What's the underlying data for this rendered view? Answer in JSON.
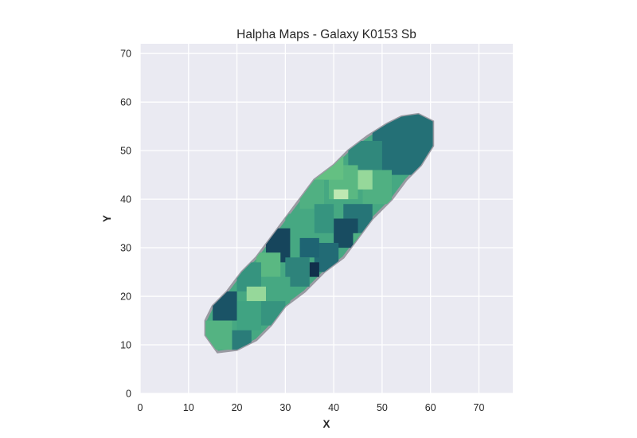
{
  "chart_data": {
    "type": "heatmap",
    "title": "Halpha Maps - Galaxy K0153 Sb",
    "xlabel": "X",
    "ylabel": "Y",
    "xlim": [
      0,
      77
    ],
    "ylim": [
      0,
      72
    ],
    "xticks": [
      0,
      10,
      20,
      30,
      40,
      50,
      60,
      70
    ],
    "yticks": [
      0,
      10,
      20,
      30,
      40,
      50,
      60,
      70
    ],
    "xtick_labels": [
      "0",
      "10",
      "20",
      "30",
      "40",
      "50",
      "60",
      "70"
    ],
    "ytick_labels": [
      "0",
      "10",
      "20",
      "30",
      "40",
      "50",
      "60",
      "70"
    ],
    "grid": true,
    "background_color": "#eaeaf2",
    "grid_color": "#ffffff",
    "colormap": "crest (teal-green)",
    "galaxy_outline": [
      [
        13.5,
        12
      ],
      [
        13.5,
        15
      ],
      [
        15,
        18
      ],
      [
        18,
        21
      ],
      [
        21,
        25
      ],
      [
        24,
        28
      ],
      [
        27,
        32
      ],
      [
        30,
        36
      ],
      [
        33,
        40
      ],
      [
        36,
        44
      ],
      [
        40,
        47
      ],
      [
        43,
        50
      ],
      [
        47,
        53
      ],
      [
        51,
        55.5
      ],
      [
        54,
        57
      ],
      [
        57.5,
        57.5
      ],
      [
        60.5,
        56
      ],
      [
        60.5,
        51
      ],
      [
        58,
        47
      ],
      [
        55,
        44
      ],
      [
        52,
        40
      ],
      [
        48,
        36
      ],
      [
        45,
        32
      ],
      [
        42,
        28
      ],
      [
        38,
        25
      ],
      [
        34,
        21
      ],
      [
        30,
        18
      ],
      [
        27,
        14
      ],
      [
        24,
        11
      ],
      [
        20,
        9
      ],
      [
        16,
        8.5
      ]
    ],
    "regions": [
      {
        "x": [
          48,
          60.5
        ],
        "y": [
          45,
          57.5
        ],
        "value": 0.7
      },
      {
        "x": [
          43,
          50
        ],
        "y": [
          44,
          52
        ],
        "value": 0.6
      },
      {
        "x": [
          46,
          52
        ],
        "y": [
          39,
          46
        ],
        "value": 0.4
      },
      {
        "x": [
          39,
          45
        ],
        "y": [
          40,
          47
        ],
        "value": 0.35
      },
      {
        "x": [
          45,
          48
        ],
        "y": [
          42,
          46
        ],
        "value": 0.15
      },
      {
        "x": [
          36,
          42
        ],
        "y": [
          44,
          50
        ],
        "value": 0.3
      },
      {
        "x": [
          33,
          38
        ],
        "y": [
          38,
          44
        ],
        "value": 0.4
      },
      {
        "x": [
          40,
          43
        ],
        "y": [
          40,
          42
        ],
        "value": 0.05
      },
      {
        "x": [
          42,
          48
        ],
        "y": [
          33,
          39
        ],
        "value": 0.68
      },
      {
        "x": [
          40,
          45
        ],
        "y": [
          30,
          36
        ],
        "value": 0.85
      },
      {
        "x": [
          44,
          47
        ],
        "y": [
          29,
          33
        ],
        "value": 0.4
      },
      {
        "x": [
          36,
          40
        ],
        "y": [
          33,
          39
        ],
        "value": 0.55
      },
      {
        "x": [
          30,
          36
        ],
        "y": [
          30,
          37
        ],
        "value": 0.45
      },
      {
        "x": [
          26,
          31
        ],
        "y": [
          27,
          34
        ],
        "value": 0.88
      },
      {
        "x": [
          36,
          41
        ],
        "y": [
          25,
          31
        ],
        "value": 0.72
      },
      {
        "x": [
          33,
          37
        ],
        "y": [
          28,
          32
        ],
        "value": 0.75
      },
      {
        "x": [
          35,
          37
        ],
        "y": [
          24,
          27
        ],
        "value": 0.97
      },
      {
        "x": [
          30,
          35
        ],
        "y": [
          22,
          28
        ],
        "value": 0.62
      },
      {
        "x": [
          24,
          29
        ],
        "y": [
          24,
          29
        ],
        "value": 0.35
      },
      {
        "x": [
          20,
          25
        ],
        "y": [
          21,
          27
        ],
        "value": 0.55
      },
      {
        "x": [
          22,
          26
        ],
        "y": [
          19,
          22
        ],
        "value": 0.15
      },
      {
        "x": [
          26,
          31
        ],
        "y": [
          18,
          24
        ],
        "value": 0.45
      },
      {
        "x": [
          15,
          20
        ],
        "y": [
          15,
          21
        ],
        "value": 0.82
      },
      {
        "x": [
          20,
          25
        ],
        "y": [
          13,
          19
        ],
        "value": 0.48
      },
      {
        "x": [
          25,
          30
        ],
        "y": [
          14,
          19
        ],
        "value": 0.55
      },
      {
        "x": [
          13.5,
          19
        ],
        "y": [
          9,
          15
        ],
        "value": 0.38
      },
      {
        "x": [
          19,
          23
        ],
        "y": [
          9,
          13
        ],
        "value": 0.65
      }
    ]
  }
}
